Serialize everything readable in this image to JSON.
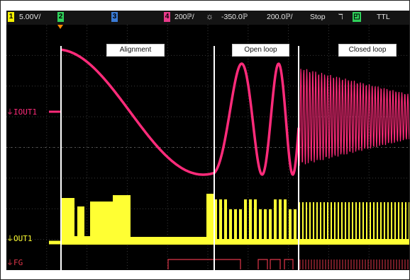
{
  "status_bar": {
    "ch1_number": "1",
    "ch1_scale": "5.00V/",
    "ch2_number": "2",
    "ch3_number": "3",
    "ch4_number": "4",
    "timebase": "200ℙ/",
    "trigger_icon": "sun-trigger-icon",
    "delay": "-350.0ℙ",
    "time_scale": "200.0ℙ/",
    "run_state": "Stop",
    "trigger_edge_icon": "rising-edge-icon",
    "trigger_source": "TTL",
    "colors": {
      "ch1": "#f4f000",
      "ch2": "#2fd05a",
      "ch3": "#3a7bd5",
      "ch4": "#e83a8a"
    }
  },
  "region_labels": {
    "alignment": "Alignment",
    "open_loop": "Open loop",
    "closed_loop": "Closed loop"
  },
  "channel_labels": {
    "iout1": "IOUT1",
    "out1": "OUT1",
    "fg": "FG"
  },
  "trace_colors": {
    "iout1": "#ff2b7a",
    "out1": "#ffff33",
    "fg": "#e0364a"
  }
}
